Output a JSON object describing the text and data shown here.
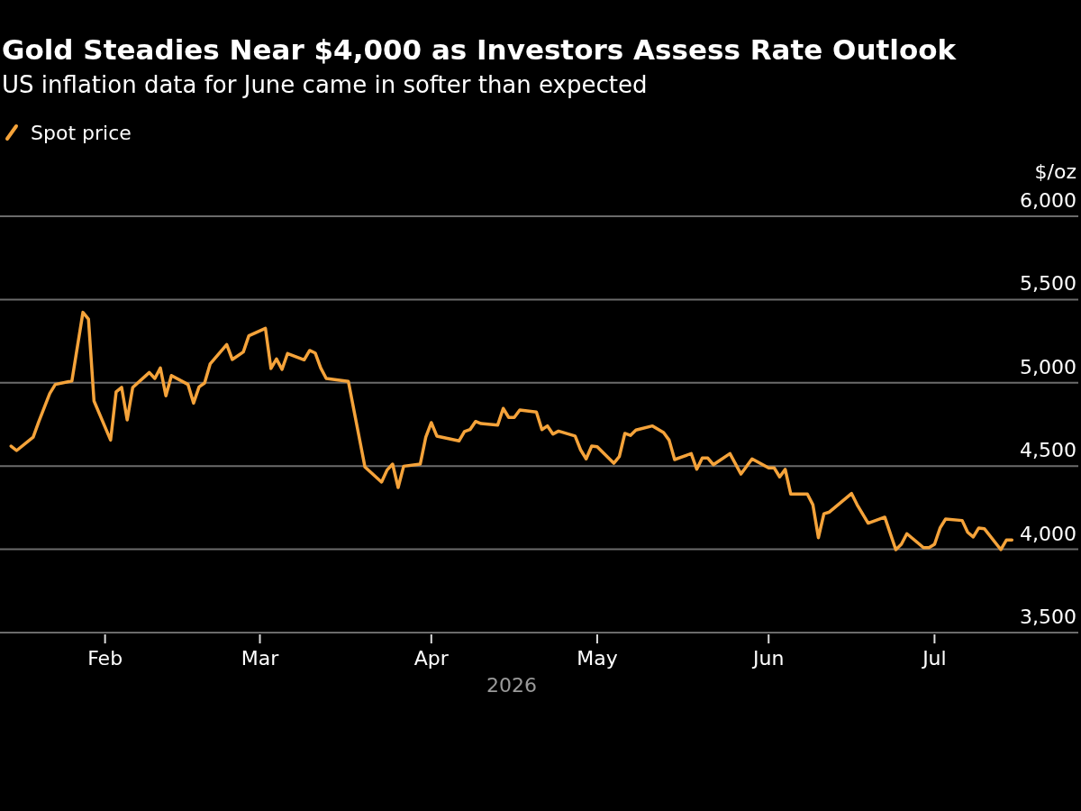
{
  "chart_data": {
    "type": "line",
    "title": "Gold Steadies Near $4,000 as Investors Assess Rate Outlook",
    "subtitle": "US inflation data for June came in softer than expected",
    "xlabel": "2026",
    "ylabel": "$/oz",
    "x": [
      "2026-01-15",
      "2026-01-16",
      "2026-01-19",
      "2026-01-20",
      "2026-01-22",
      "2026-01-23",
      "2026-01-26",
      "2026-01-28",
      "2026-01-29",
      "2026-01-30",
      "2026-02-02",
      "2026-02-03",
      "2026-02-04",
      "2026-02-05",
      "2026-02-06",
      "2026-02-09",
      "2026-02-10",
      "2026-02-11",
      "2026-02-12",
      "2026-02-13",
      "2026-02-16",
      "2026-02-17",
      "2026-02-18",
      "2026-02-19",
      "2026-02-20",
      "2026-02-23",
      "2026-02-24",
      "2026-02-26",
      "2026-02-27",
      "2026-03-02",
      "2026-03-03",
      "2026-03-04",
      "2026-03-05",
      "2026-03-06",
      "2026-03-09",
      "2026-03-10",
      "2026-03-11",
      "2026-03-12",
      "2026-03-13",
      "2026-03-17",
      "2026-03-20",
      "2026-03-23",
      "2026-03-24",
      "2026-03-25",
      "2026-03-26",
      "2026-03-27",
      "2026-03-30",
      "2026-03-31",
      "2026-04-01",
      "2026-04-02",
      "2026-04-06",
      "2026-04-07",
      "2026-04-08",
      "2026-04-09",
      "2026-04-10",
      "2026-04-13",
      "2026-04-14",
      "2026-04-15",
      "2026-04-16",
      "2026-04-17",
      "2026-04-20",
      "2026-04-21",
      "2026-04-22",
      "2026-04-23",
      "2026-04-24",
      "2026-04-27",
      "2026-04-28",
      "2026-04-29",
      "2026-04-30",
      "2026-05-01",
      "2026-05-04",
      "2026-05-05",
      "2026-05-06",
      "2026-05-07",
      "2026-05-08",
      "2026-05-11",
      "2026-05-13",
      "2026-05-14",
      "2026-05-15",
      "2026-05-18",
      "2026-05-19",
      "2026-05-20",
      "2026-05-21",
      "2026-05-22",
      "2026-05-25",
      "2026-05-27",
      "2026-05-29",
      "2026-06-01",
      "2026-06-02",
      "2026-06-03",
      "2026-06-04",
      "2026-06-05",
      "2026-06-08",
      "2026-06-09",
      "2026-06-10",
      "2026-06-11",
      "2026-06-12",
      "2026-06-16",
      "2026-06-17",
      "2026-06-19",
      "2026-06-22",
      "2026-06-24",
      "2026-06-25",
      "2026-06-26",
      "2026-06-29",
      "2026-06-30",
      "2026-07-01",
      "2026-07-02",
      "2026-07-03",
      "2026-07-06",
      "2026-07-07",
      "2026-07-08",
      "2026-07-09",
      "2026-07-10",
      "2026-07-13",
      "2026-07-14",
      "2026-07-15"
    ],
    "series": [
      {
        "name": "Spot price",
        "color": "#f5a33a",
        "values": [
          4620,
          4593,
          4674,
          4766,
          4936,
          4990,
          5011,
          5423,
          5383,
          4891,
          4656,
          4945,
          4972,
          4777,
          4972,
          5062,
          5026,
          5089,
          4922,
          5044,
          4990,
          4878,
          4975,
          4999,
          5113,
          5230,
          5140,
          5185,
          5282,
          5327,
          5086,
          5143,
          5080,
          5176,
          5138,
          5194,
          5179,
          5089,
          5026,
          5008,
          4494,
          4404,
          4476,
          4512,
          4371,
          4499,
          4512,
          4674,
          4761,
          4680,
          4651,
          4707,
          4719,
          4768,
          4755,
          4746,
          4846,
          4792,
          4792,
          4837,
          4824,
          4719,
          4741,
          4692,
          4710,
          4680,
          4597,
          4543,
          4620,
          4616,
          4517,
          4557,
          4696,
          4684,
          4716,
          4741,
          4701,
          4656,
          4539,
          4575,
          4481,
          4548,
          4548,
          4508,
          4575,
          4452,
          4543,
          4489,
          4489,
          4435,
          4480,
          4332,
          4332,
          4268,
          4070,
          4214,
          4224,
          4335,
          4268,
          4157,
          4193,
          3998,
          4030,
          4094,
          4010,
          4010,
          4030,
          4128,
          4182,
          4173,
          4102,
          4074,
          4128,
          4124,
          3998,
          4056,
          4056
        ]
      }
    ],
    "xlim": [
      "2026-01-13",
      "2026-07-27"
    ],
    "xticks": [
      {
        "value": "2026-02-01",
        "label": "Feb"
      },
      {
        "value": "2026-03-01",
        "label": "Mar"
      },
      {
        "value": "2026-04-01",
        "label": "Apr"
      },
      {
        "value": "2026-05-01",
        "label": "May"
      },
      {
        "value": "2026-06-01",
        "label": "Jun"
      },
      {
        "value": "2026-07-01",
        "label": "Jul"
      }
    ],
    "ylim": [
      3500,
      6000
    ],
    "yticks": [
      {
        "value": 3500,
        "label": "3,500"
      },
      {
        "value": 4000,
        "label": "4,000"
      },
      {
        "value": 4500,
        "label": "4,500"
      },
      {
        "value": 5000,
        "label": "5,000"
      },
      {
        "value": 5500,
        "label": "5,500"
      },
      {
        "value": 6000,
        "label": "6,000"
      }
    ],
    "grid": "y",
    "legend": "top left",
    "marker": "none",
    "line_style": "solid"
  }
}
